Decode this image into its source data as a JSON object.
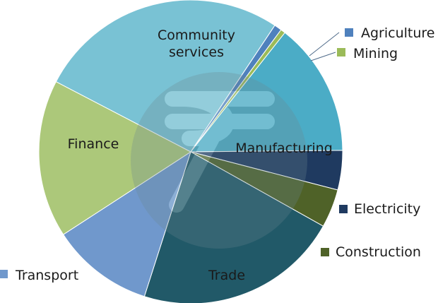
{
  "chart_data": {
    "type": "pie",
    "title": "",
    "categories": [
      "Community services",
      "Agriculture",
      "Mining",
      "Manufacturing",
      "Electricity",
      "Construction",
      "Trade",
      "Transport",
      "Finance"
    ],
    "values": [
      26.7,
      0.8,
      0.5,
      14.2,
      4.2,
      4.1,
      21.8,
      10.9,
      16.8
    ],
    "unit": "%",
    "colors": [
      "#79c2d4",
      "#4f81bd",
      "#9bbb59",
      "#4bacc6",
      "#1f3a60",
      "#4f6228",
      "#215968",
      "#7098cc",
      "#acc87a"
    ],
    "label_lines": {
      "Community services": [
        "Community",
        "services"
      ]
    },
    "legend_placement": "callouts",
    "watermark": "rupee-symbol"
  }
}
